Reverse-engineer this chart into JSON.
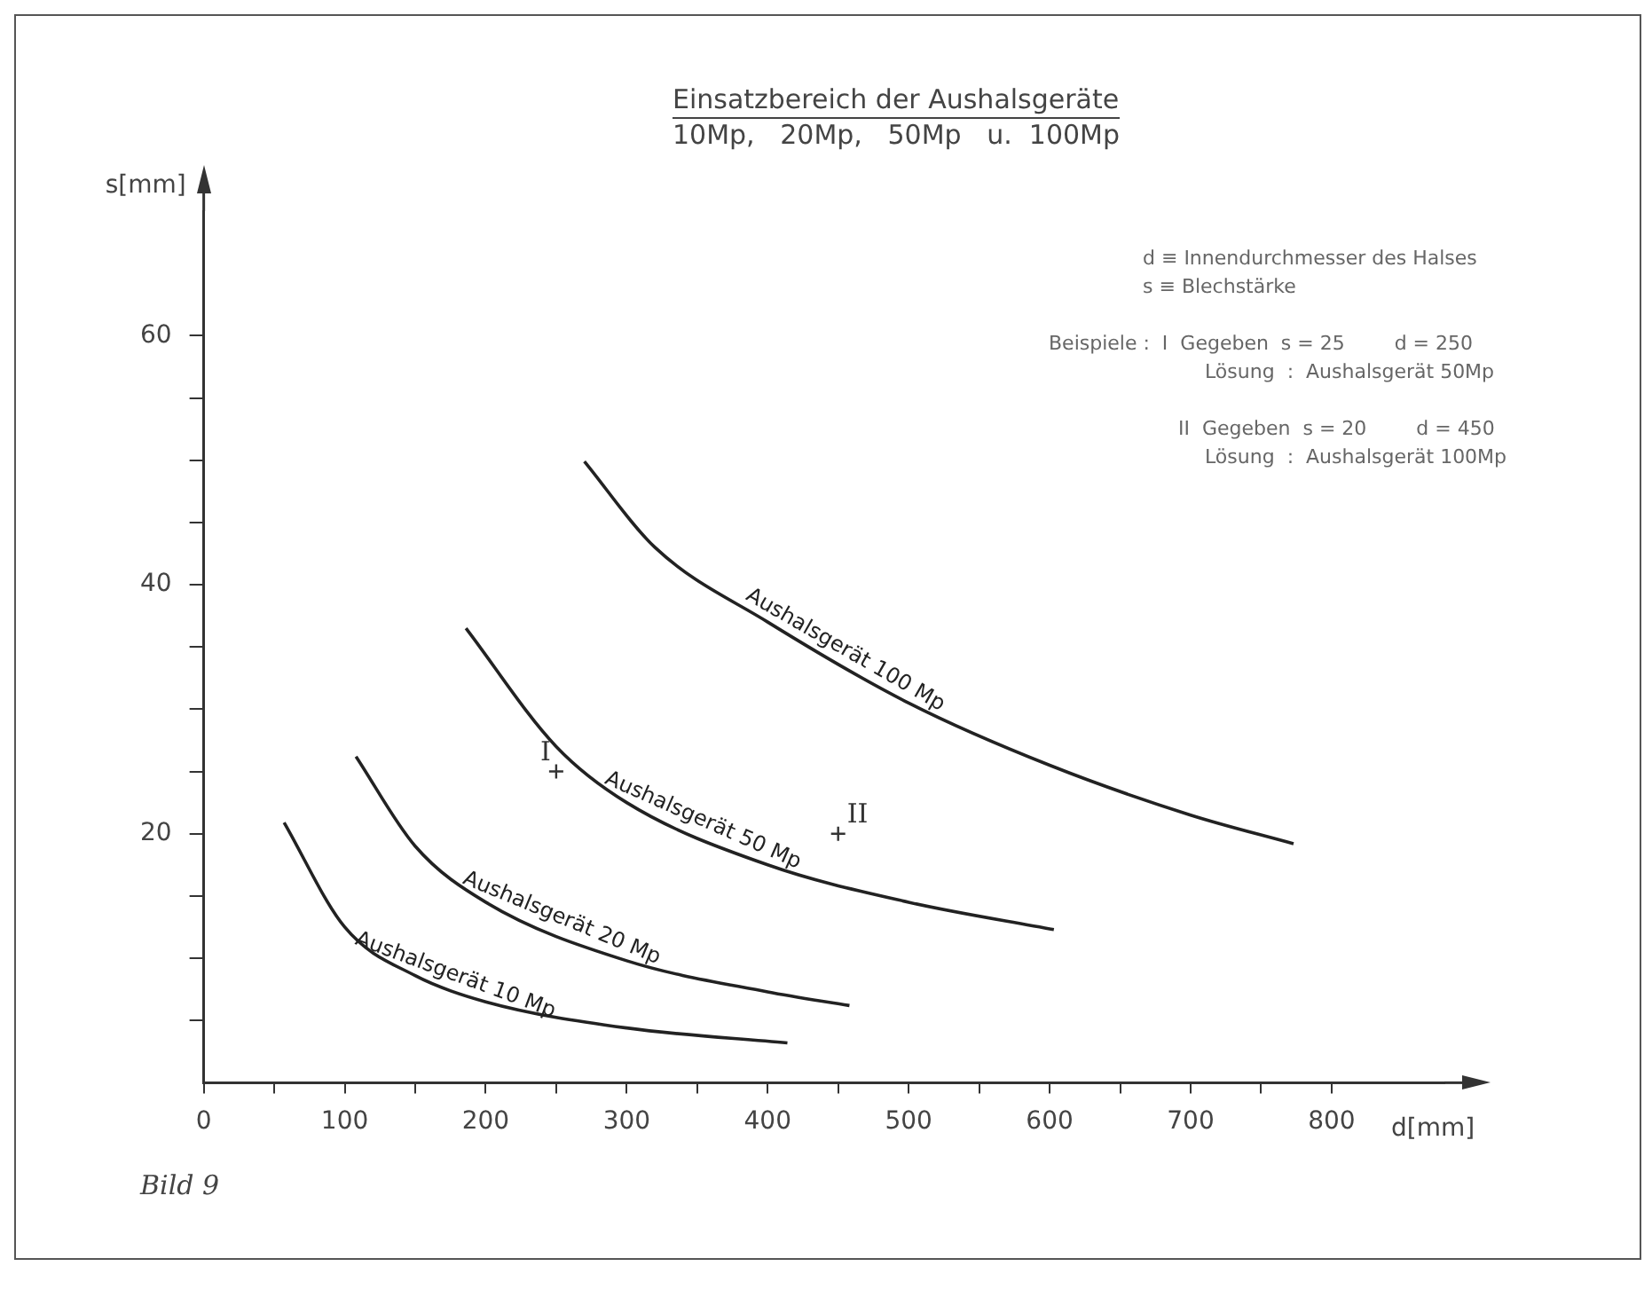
{
  "chart_data": {
    "type": "line",
    "title": "Einsatzbereich der Aushalsgeräte",
    "subtitle": "10Mp,   20Mp,   50Mp   u.  100Mp",
    "xlabel": "d[mm]",
    "ylabel": "s[mm]",
    "xlim": [
      0,
      880
    ],
    "xticks": [
      0,
      {
        "value": 50,
        "label": null
      },
      100,
      {
        "value": 150,
        "label": null
      },
      200,
      {
        "value": 250,
        "label": null
      },
      300,
      {
        "value": 350,
        "label": null
      },
      400,
      {
        "value": 450,
        "label": null
      },
      500,
      {
        "value": 550,
        "label": null
      },
      600,
      {
        "value": 650,
        "label": null
      },
      700,
      {
        "value": 750,
        "label": null
      },
      800
    ],
    "ylim": [
      0,
      70
    ],
    "yticks": [
      {
        "value": 5,
        "label": null
      },
      {
        "value": 10,
        "label": null
      },
      {
        "value": 15,
        "label": null
      },
      20,
      {
        "value": 25,
        "label": null
      },
      {
        "value": 30,
        "label": null
      },
      {
        "value": 35,
        "label": null
      },
      40,
      {
        "value": 45,
        "label": null
      },
      {
        "value": 50,
        "label": null
      },
      {
        "value": 55,
        "label": null
      },
      60
    ],
    "grid": false,
    "legend": false,
    "marker": "none",
    "line_style": "solid",
    "series": [
      {
        "name": "Aushalsgerät 10 Mp",
        "color": "#222222",
        "x": [
          57,
          100,
          150,
          200,
          300,
          414
        ],
        "values": [
          20.9,
          12.5,
          8.6,
          6.5,
          4.4,
          3.2
        ]
      },
      {
        "name": "Aushalsgerät 20 Mp",
        "color": "#222222",
        "x": [
          108,
          150,
          200,
          300,
          400,
          458
        ],
        "values": [
          26.2,
          19,
          14.5,
          9.8,
          7.3,
          6.2
        ]
      },
      {
        "name": "Aushalsgerät 50 Mp",
        "color": "#222222",
        "x": [
          186,
          250,
          300,
          400,
          500,
          603
        ],
        "values": [
          36.5,
          27,
          22.5,
          17.5,
          14.5,
          12.3
        ]
      },
      {
        "name": "Aushalsgerät 100 Mp",
        "color": "#222222",
        "x": [
          270,
          320,
          400,
          500,
          600,
          700,
          773
        ],
        "values": [
          49.9,
          43,
          37,
          30.5,
          25.5,
          21.5,
          19.2
        ]
      },
      {
        "name": "I",
        "type": "scatter",
        "marker": "cross",
        "color": "#333333",
        "x": [
          250
        ],
        "values": [
          25
        ]
      },
      {
        "name": "II",
        "type": "scatter",
        "marker": "cross",
        "color": "#333333",
        "x": [
          450
        ],
        "values": [
          20
        ]
      }
    ],
    "annotations": [
      "d ≡ Innendurchmesser des Halses",
      "s ≡ Blechstärke",
      "Beispiele :  I  Gegeben  s = 25        d = 250",
      "Lösung  :  Aushalsgerät 50Mp",
      "II  Gegeben  s = 20        d = 450",
      "Lösung  :  Aushalsgerät 100Mp",
      "Bild 9"
    ]
  }
}
